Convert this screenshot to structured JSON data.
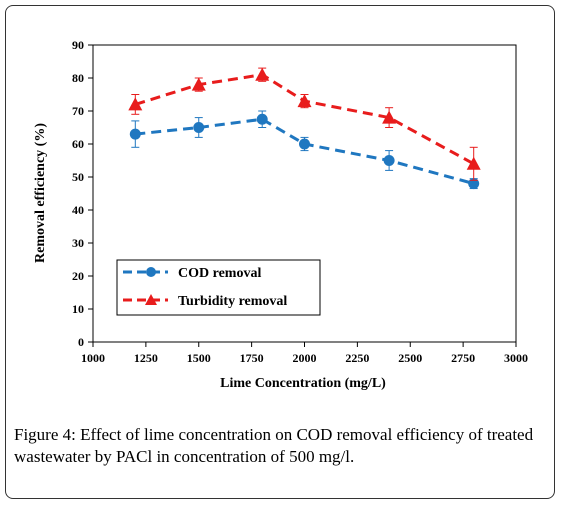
{
  "chart_data": {
    "type": "line",
    "xlabel": "Lime Concentration (mg/L)",
    "ylabel": "Removal efficiency (%)",
    "xlim": [
      1000,
      3000
    ],
    "ylim": [
      0,
      90
    ],
    "xticks": [
      "1000",
      "1250",
      "1500",
      "1750",
      "2000",
      "2250",
      "2500",
      "2750",
      "3000"
    ],
    "yticks": [
      "0",
      "10",
      "20",
      "30",
      "40",
      "50",
      "60",
      "70",
      "80",
      "90"
    ],
    "grid": false,
    "legend_position": "bottom-left",
    "series": [
      {
        "name": "COD removal",
        "color": "#1f77c0",
        "marker": "circle",
        "x": [
          1200,
          1500,
          1800,
          2000,
          2400,
          2800
        ],
        "y": [
          63,
          65,
          67.5,
          60,
          55,
          48
        ],
        "err": [
          4,
          3,
          2.5,
          2,
          3,
          1.5
        ]
      },
      {
        "name": "Turbidity removal",
        "color": "#e81c1c",
        "marker": "triangle",
        "x": [
          1200,
          1500,
          1800,
          2000,
          2400,
          2800
        ],
        "y": [
          72,
          78,
          81,
          73,
          68,
          54
        ],
        "err": [
          3,
          2,
          2,
          2,
          3,
          5
        ]
      }
    ]
  },
  "caption": {
    "label": "Figure 4:",
    "text": " Effect of lime concentration on COD removal efficiency of treated wastewater by PACl in concentration of 500 mg/l."
  }
}
